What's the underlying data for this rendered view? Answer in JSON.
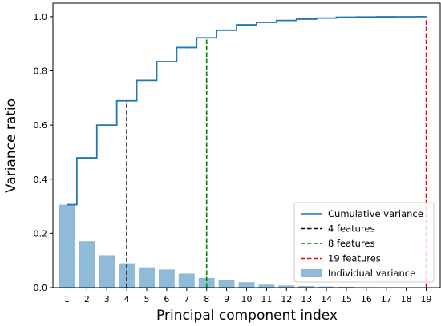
{
  "chart_data": {
    "type": "bar",
    "title": "",
    "xlabel": "Principal component index",
    "ylabel": "Variance ratio",
    "categories": [
      "1",
      "2",
      "3",
      "4",
      "5",
      "6",
      "7",
      "8",
      "9",
      "10",
      "11",
      "12",
      "13",
      "14",
      "15",
      "16",
      "17",
      "18",
      "19"
    ],
    "x_ticks": [
      "1",
      "2",
      "3",
      "4",
      "5",
      "6",
      "7",
      "8",
      "9",
      "10",
      "11",
      "12",
      "13",
      "14",
      "15",
      "16",
      "17",
      "18",
      "19"
    ],
    "y_ticks": [
      "0.0",
      "0.2",
      "0.4",
      "0.6",
      "0.8",
      "1.0"
    ],
    "ylim": [
      0,
      1.05
    ],
    "xlim": [
      0.3,
      19.7
    ],
    "grid": false,
    "legend_position": "lower-right",
    "series": [
      {
        "name": "Individual variance",
        "kind": "bar",
        "color": "#8fbbd9",
        "values": [
          0.306,
          0.171,
          0.12,
          0.09,
          0.075,
          0.067,
          0.052,
          0.036,
          0.027,
          0.02,
          0.011,
          0.008,
          0.006,
          0.004,
          0.003,
          0.0015,
          0.001,
          0.0005,
          0.0002
        ]
      },
      {
        "name": "Cumulative variance",
        "kind": "step",
        "color": "#1f77b4",
        "values": [
          0.306,
          0.479,
          0.6,
          0.69,
          0.765,
          0.834,
          0.886,
          0.922,
          0.95,
          0.97,
          0.979,
          0.986,
          0.991,
          0.995,
          0.998,
          0.999,
          0.9995,
          0.9998,
          1.0
        ]
      }
    ],
    "vlines": [
      {
        "name": "4 features",
        "x": 4,
        "y_top": 0.69,
        "color": "#000000"
      },
      {
        "name": "8 features",
        "x": 8,
        "y_top": 0.922,
        "color": "#008000"
      },
      {
        "name": "19 features",
        "x": 19,
        "y_top": 1.0,
        "color": "#ff0000"
      }
    ]
  }
}
